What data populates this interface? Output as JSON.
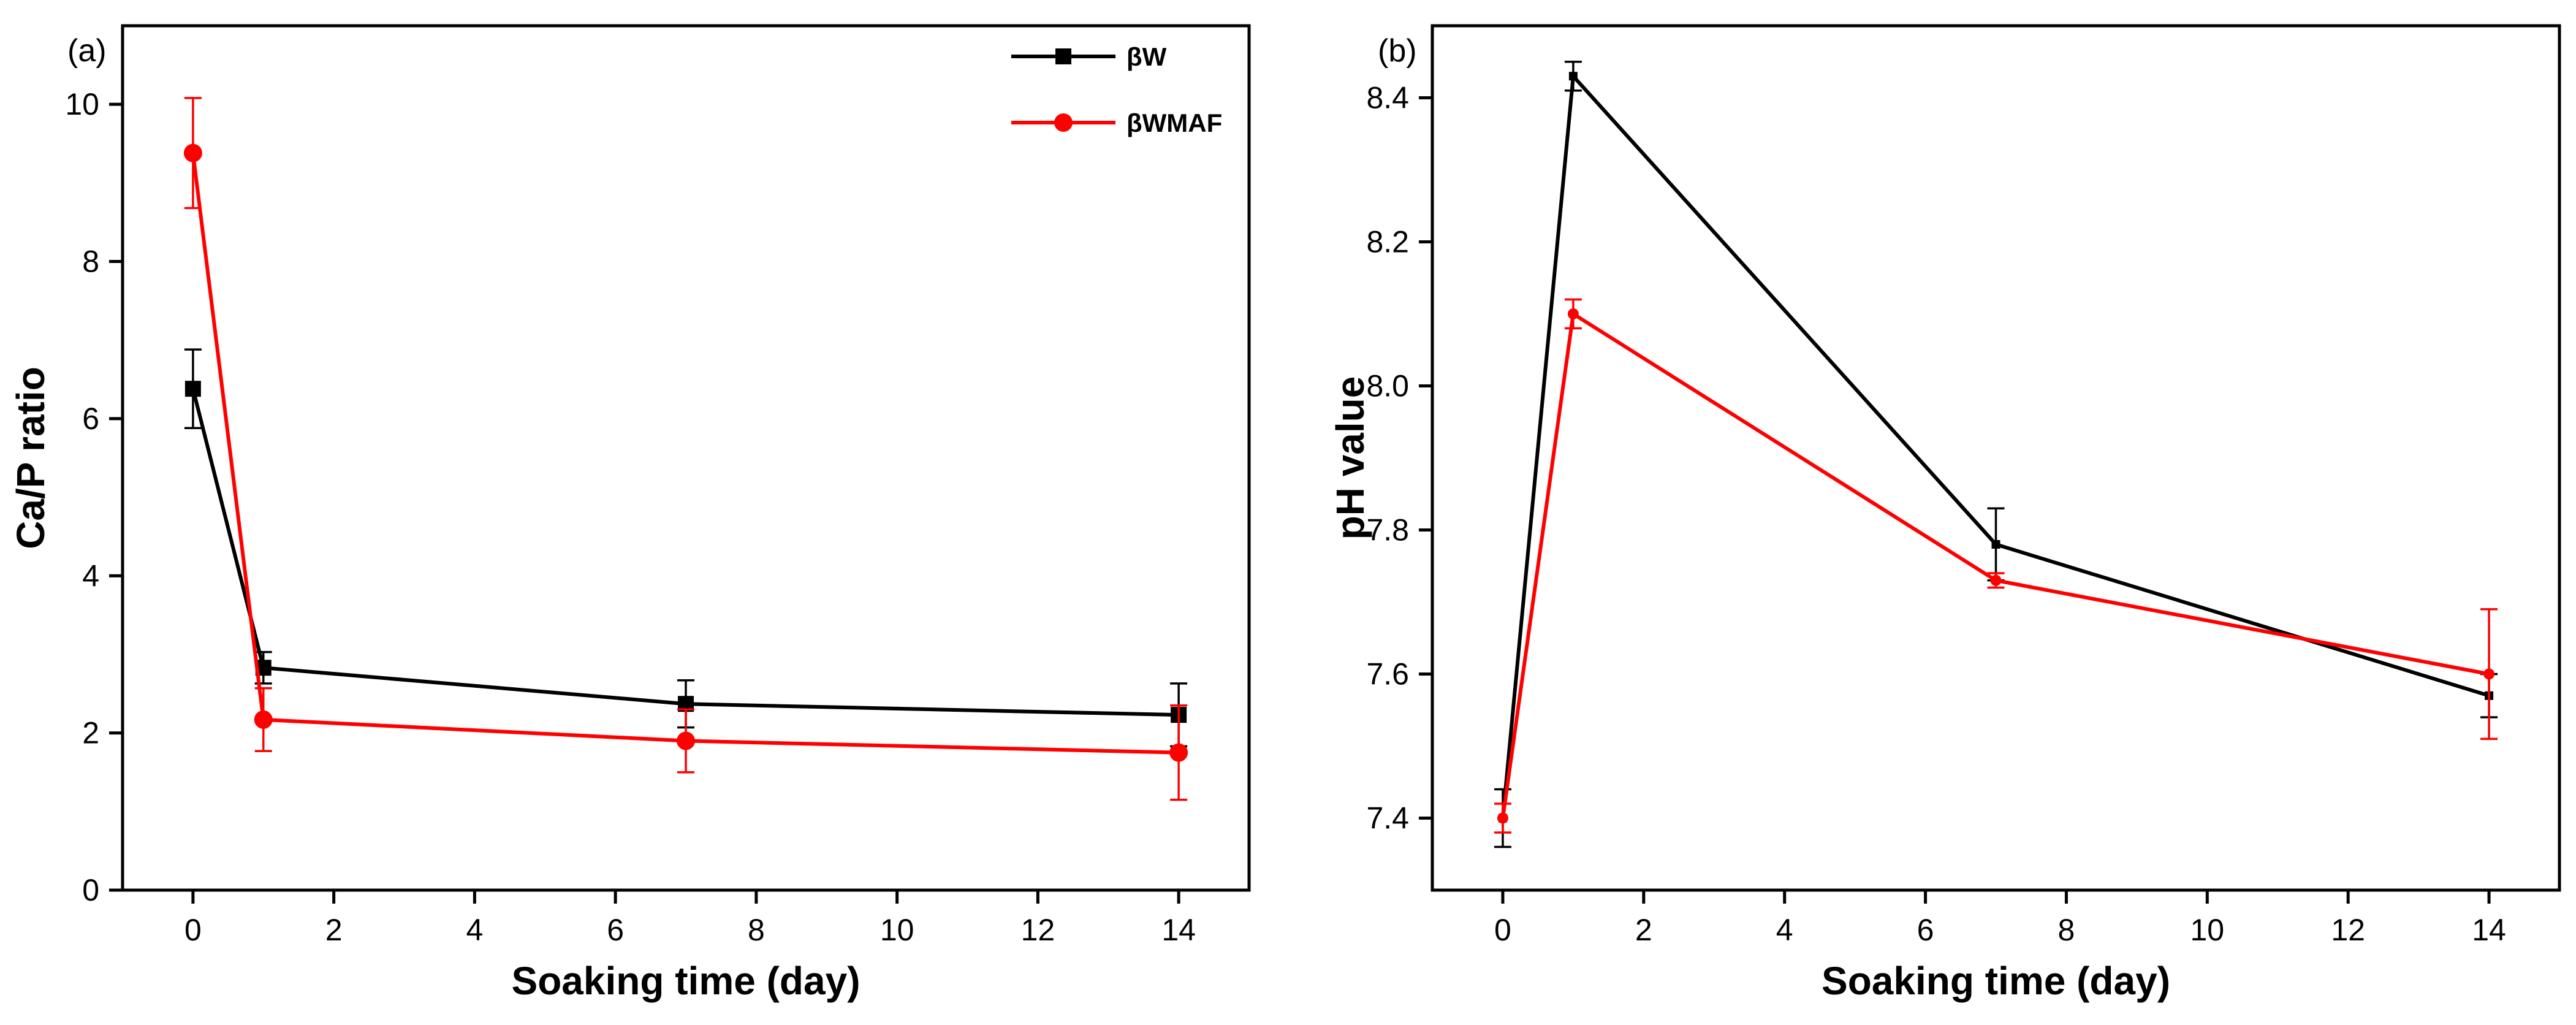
{
  "chart_data": [
    {
      "type": "line",
      "panel_label": "(a)",
      "title": "",
      "xlabel": "Soaking time (day)",
      "ylabel": "Ca/P ratio",
      "xlim": [
        -1,
        15
      ],
      "ylim": [
        0,
        11
      ],
      "xticks": [
        0,
        2,
        4,
        6,
        8,
        10,
        12,
        14
      ],
      "yticks": [
        0,
        2,
        4,
        6,
        8,
        10
      ],
      "x": [
        0,
        1,
        7,
        14
      ],
      "legend": "top-right",
      "series": [
        {
          "name": "βW",
          "color": "#000000",
          "marker": "square",
          "values": [
            6.38,
            2.83,
            2.37,
            2.23
          ],
          "errors": [
            0.5,
            0.2,
            0.3,
            0.4
          ]
        },
        {
          "name": "βWMAF",
          "color": "#ff0000",
          "marker": "circle",
          "values": [
            9.38,
            2.17,
            1.9,
            1.75
          ],
          "errors": [
            0.7,
            0.4,
            0.4,
            0.6
          ]
        }
      ]
    },
    {
      "type": "line",
      "panel_label": "(b)",
      "title": "",
      "xlabel": "Soaking time (day)",
      "ylabel": "pH value",
      "xlim": [
        -1,
        15
      ],
      "ylim": [
        7.3,
        8.5
      ],
      "xticks": [
        0,
        2,
        4,
        6,
        8,
        10,
        12,
        14
      ],
      "yticks": [
        7.4,
        7.6,
        7.8,
        8.0,
        8.2,
        8.4
      ],
      "x": [
        0,
        1,
        7,
        14
      ],
      "legend": "none",
      "series": [
        {
          "name": "βW",
          "color": "#000000",
          "marker": "square",
          "values": [
            7.4,
            8.43,
            7.78,
            7.57
          ],
          "errors": [
            0.04,
            0.02,
            0.05,
            0.03
          ]
        },
        {
          "name": "βWMAF",
          "color": "#ff0000",
          "marker": "circle",
          "values": [
            7.4,
            8.1,
            7.73,
            7.6
          ],
          "errors": [
            0.02,
            0.02,
            0.01,
            0.09
          ]
        }
      ]
    }
  ]
}
